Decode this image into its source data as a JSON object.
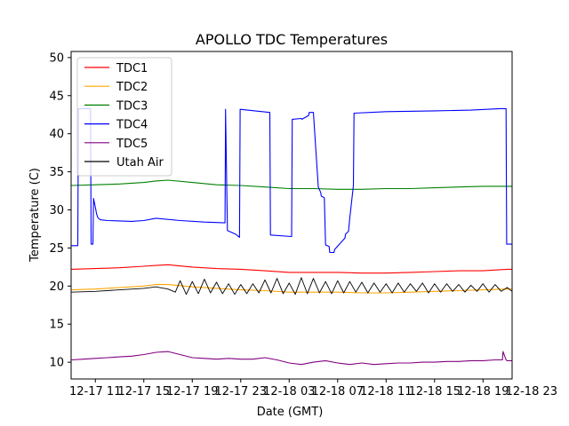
{
  "chart_data": {
    "type": "line",
    "title": "APOLLO TDC Temperatures",
    "xlabel": "Date (GMT)",
    "ylabel": "Temperature (C)",
    "xlim": [
      0,
      36.4
    ],
    "ylim": [
      7.8,
      50.8
    ],
    "x_ticks": [
      {
        "x": 2.0,
        "label": "12-17 11"
      },
      {
        "x": 6.0,
        "label": "12-17 15"
      },
      {
        "x": 10.0,
        "label": "12-17 19"
      },
      {
        "x": 14.0,
        "label": "12-17 23"
      },
      {
        "x": 18.0,
        "label": "12-18 03"
      },
      {
        "x": 22.0,
        "label": "12-18 07"
      },
      {
        "x": 26.0,
        "label": "12-18 11"
      },
      {
        "x": 30.0,
        "label": "12-18 15"
      },
      {
        "x": 34.0,
        "label": "12-18 19"
      },
      {
        "x": 38.0,
        "label": "12-18 23"
      }
    ],
    "y_ticks": [
      10,
      15,
      20,
      25,
      30,
      35,
      40,
      45,
      50
    ],
    "legend_position": "upper-left",
    "series": [
      {
        "name": "TDC1",
        "color": "#ff0000",
        "x": [
          0,
          2,
          4,
          6,
          7,
          8,
          10,
          12,
          14,
          16,
          18,
          20,
          22,
          24,
          26,
          28,
          30,
          32,
          34,
          36,
          36.4
        ],
        "y": [
          22.2,
          22.3,
          22.4,
          22.6,
          22.7,
          22.8,
          22.5,
          22.3,
          22.2,
          22.0,
          21.8,
          21.8,
          21.8,
          21.7,
          21.7,
          21.8,
          21.9,
          22.0,
          22.0,
          22.2,
          22.2
        ]
      },
      {
        "name": "TDC2",
        "color": "#ffa500",
        "x": [
          0,
          2,
          4,
          6,
          7,
          8,
          10,
          12,
          14,
          16,
          18,
          20,
          22,
          24,
          26,
          28,
          30,
          32,
          34,
          36,
          36.4
        ],
        "y": [
          19.5,
          19.6,
          19.8,
          20.0,
          20.2,
          20.2,
          19.9,
          19.7,
          19.5,
          19.4,
          19.2,
          19.2,
          19.2,
          19.1,
          19.1,
          19.2,
          19.3,
          19.4,
          19.5,
          19.6,
          19.6
        ]
      },
      {
        "name": "TDC3",
        "color": "#008000",
        "x": [
          0,
          2,
          4,
          6,
          7,
          8,
          10,
          12,
          14,
          16,
          18,
          20,
          22,
          24,
          26,
          28,
          30,
          32,
          34,
          36,
          36.4
        ],
        "y": [
          33.2,
          33.3,
          33.4,
          33.6,
          33.8,
          33.9,
          33.6,
          33.3,
          33.2,
          33.0,
          32.8,
          32.8,
          32.7,
          32.7,
          32.8,
          32.8,
          32.9,
          33.0,
          33.1,
          33.1,
          33.1
        ]
      },
      {
        "name": "TDC4",
        "color": "#0000ff",
        "x": [
          0,
          0.55,
          0.6,
          1.6,
          1.65,
          1.8,
          1.85,
          2.0,
          2.1,
          2.2,
          2.4,
          3,
          5,
          6,
          7,
          9,
          11,
          12.7,
          12.75,
          12.9,
          13.6,
          13.9,
          13.95,
          16.4,
          16.45,
          18.2,
          18.25,
          19.0,
          19.05,
          19.6,
          19.65,
          20.0,
          20.4,
          20.6,
          20.65,
          20.9,
          21.0,
          21.3,
          21.35,
          21.7,
          21.75,
          22.6,
          22.65,
          22.9,
          23.0,
          23.3,
          23.35,
          26,
          30,
          33,
          35.4,
          35.9,
          35.95,
          36.4
        ],
        "y": [
          25.3,
          25.3,
          43.3,
          43.3,
          25.5,
          25.5,
          31.5,
          30.3,
          29.5,
          29.0,
          28.7,
          28.6,
          28.5,
          28.6,
          28.9,
          28.6,
          28.4,
          28.3,
          43.2,
          27.3,
          26.8,
          26.4,
          43.2,
          42.8,
          26.7,
          26.5,
          41.9,
          42.0,
          41.9,
          42.4,
          42.8,
          42.8,
          33.0,
          32.3,
          31.8,
          31.6,
          25.4,
          25.2,
          24.4,
          24.4,
          24.8,
          26.3,
          26.8,
          27.2,
          28.9,
          33.2,
          42.7,
          42.9,
          43.0,
          43.1,
          43.3,
          43.3,
          25.5,
          25.5
        ]
      },
      {
        "name": "TDC5",
        "color": "#800080",
        "x": [
          0,
          1,
          2,
          3,
          4,
          5,
          6,
          7,
          8,
          9,
          10,
          11,
          12,
          13,
          14,
          15,
          16,
          17,
          18,
          19,
          20,
          21,
          22,
          23,
          24,
          25,
          26,
          27,
          28,
          29,
          30,
          31,
          32,
          33,
          34,
          35,
          35.6,
          35.65,
          35.9,
          36.0,
          36.4
        ],
        "y": [
          10.3,
          10.4,
          10.5,
          10.6,
          10.7,
          10.8,
          11.0,
          11.3,
          11.4,
          11.0,
          10.6,
          10.5,
          10.4,
          10.5,
          10.4,
          10.4,
          10.6,
          10.3,
          9.9,
          9.7,
          10.0,
          10.2,
          9.9,
          9.7,
          9.9,
          9.7,
          9.8,
          9.9,
          9.9,
          10.0,
          10.0,
          10.1,
          10.1,
          10.2,
          10.2,
          10.3,
          10.3,
          11.4,
          10.3,
          10.2,
          10.2
        ]
      },
      {
        "name": "Utah Air",
        "color": "#000000",
        "x": [
          0,
          2,
          4,
          6,
          7,
          8,
          8.6,
          9.0,
          9.5,
          10.0,
          10.5,
          11.0,
          11.5,
          12.0,
          12.5,
          13.0,
          13.5,
          14.0,
          14.5,
          15.0,
          15.5,
          16.0,
          16.5,
          17.0,
          17.5,
          18.0,
          18.5,
          19.0,
          19.5,
          20.0,
          20.5,
          21.0,
          21.5,
          22.0,
          22.5,
          23.0,
          23.5,
          24.0,
          24.5,
          25.0,
          25.5,
          26.0,
          26.5,
          27.0,
          27.5,
          28.0,
          28.5,
          29.0,
          29.5,
          30.0,
          30.5,
          31.0,
          31.5,
          32.0,
          32.5,
          33.0,
          33.5,
          34.0,
          34.5,
          35.0,
          35.5,
          36.0,
          36.4
        ],
        "y": [
          19.2,
          19.3,
          19.5,
          19.7,
          19.9,
          19.6,
          19.2,
          20.7,
          18.9,
          20.6,
          19.0,
          20.9,
          19.1,
          20.5,
          19.0,
          20.3,
          18.9,
          20.2,
          19.0,
          20.3,
          19.1,
          20.8,
          19.1,
          21.0,
          19.0,
          20.4,
          18.9,
          21.1,
          19.0,
          21.0,
          19.1,
          20.6,
          19.0,
          20.7,
          19.1,
          20.6,
          19.2,
          20.5,
          19.1,
          20.4,
          19.2,
          20.3,
          19.1,
          20.4,
          19.2,
          20.3,
          19.3,
          20.4,
          19.1,
          20.3,
          19.2,
          20.3,
          19.3,
          20.2,
          19.2,
          20.1,
          19.3,
          20.3,
          19.2,
          20.2,
          19.3,
          19.8,
          19.3
        ]
      }
    ]
  }
}
